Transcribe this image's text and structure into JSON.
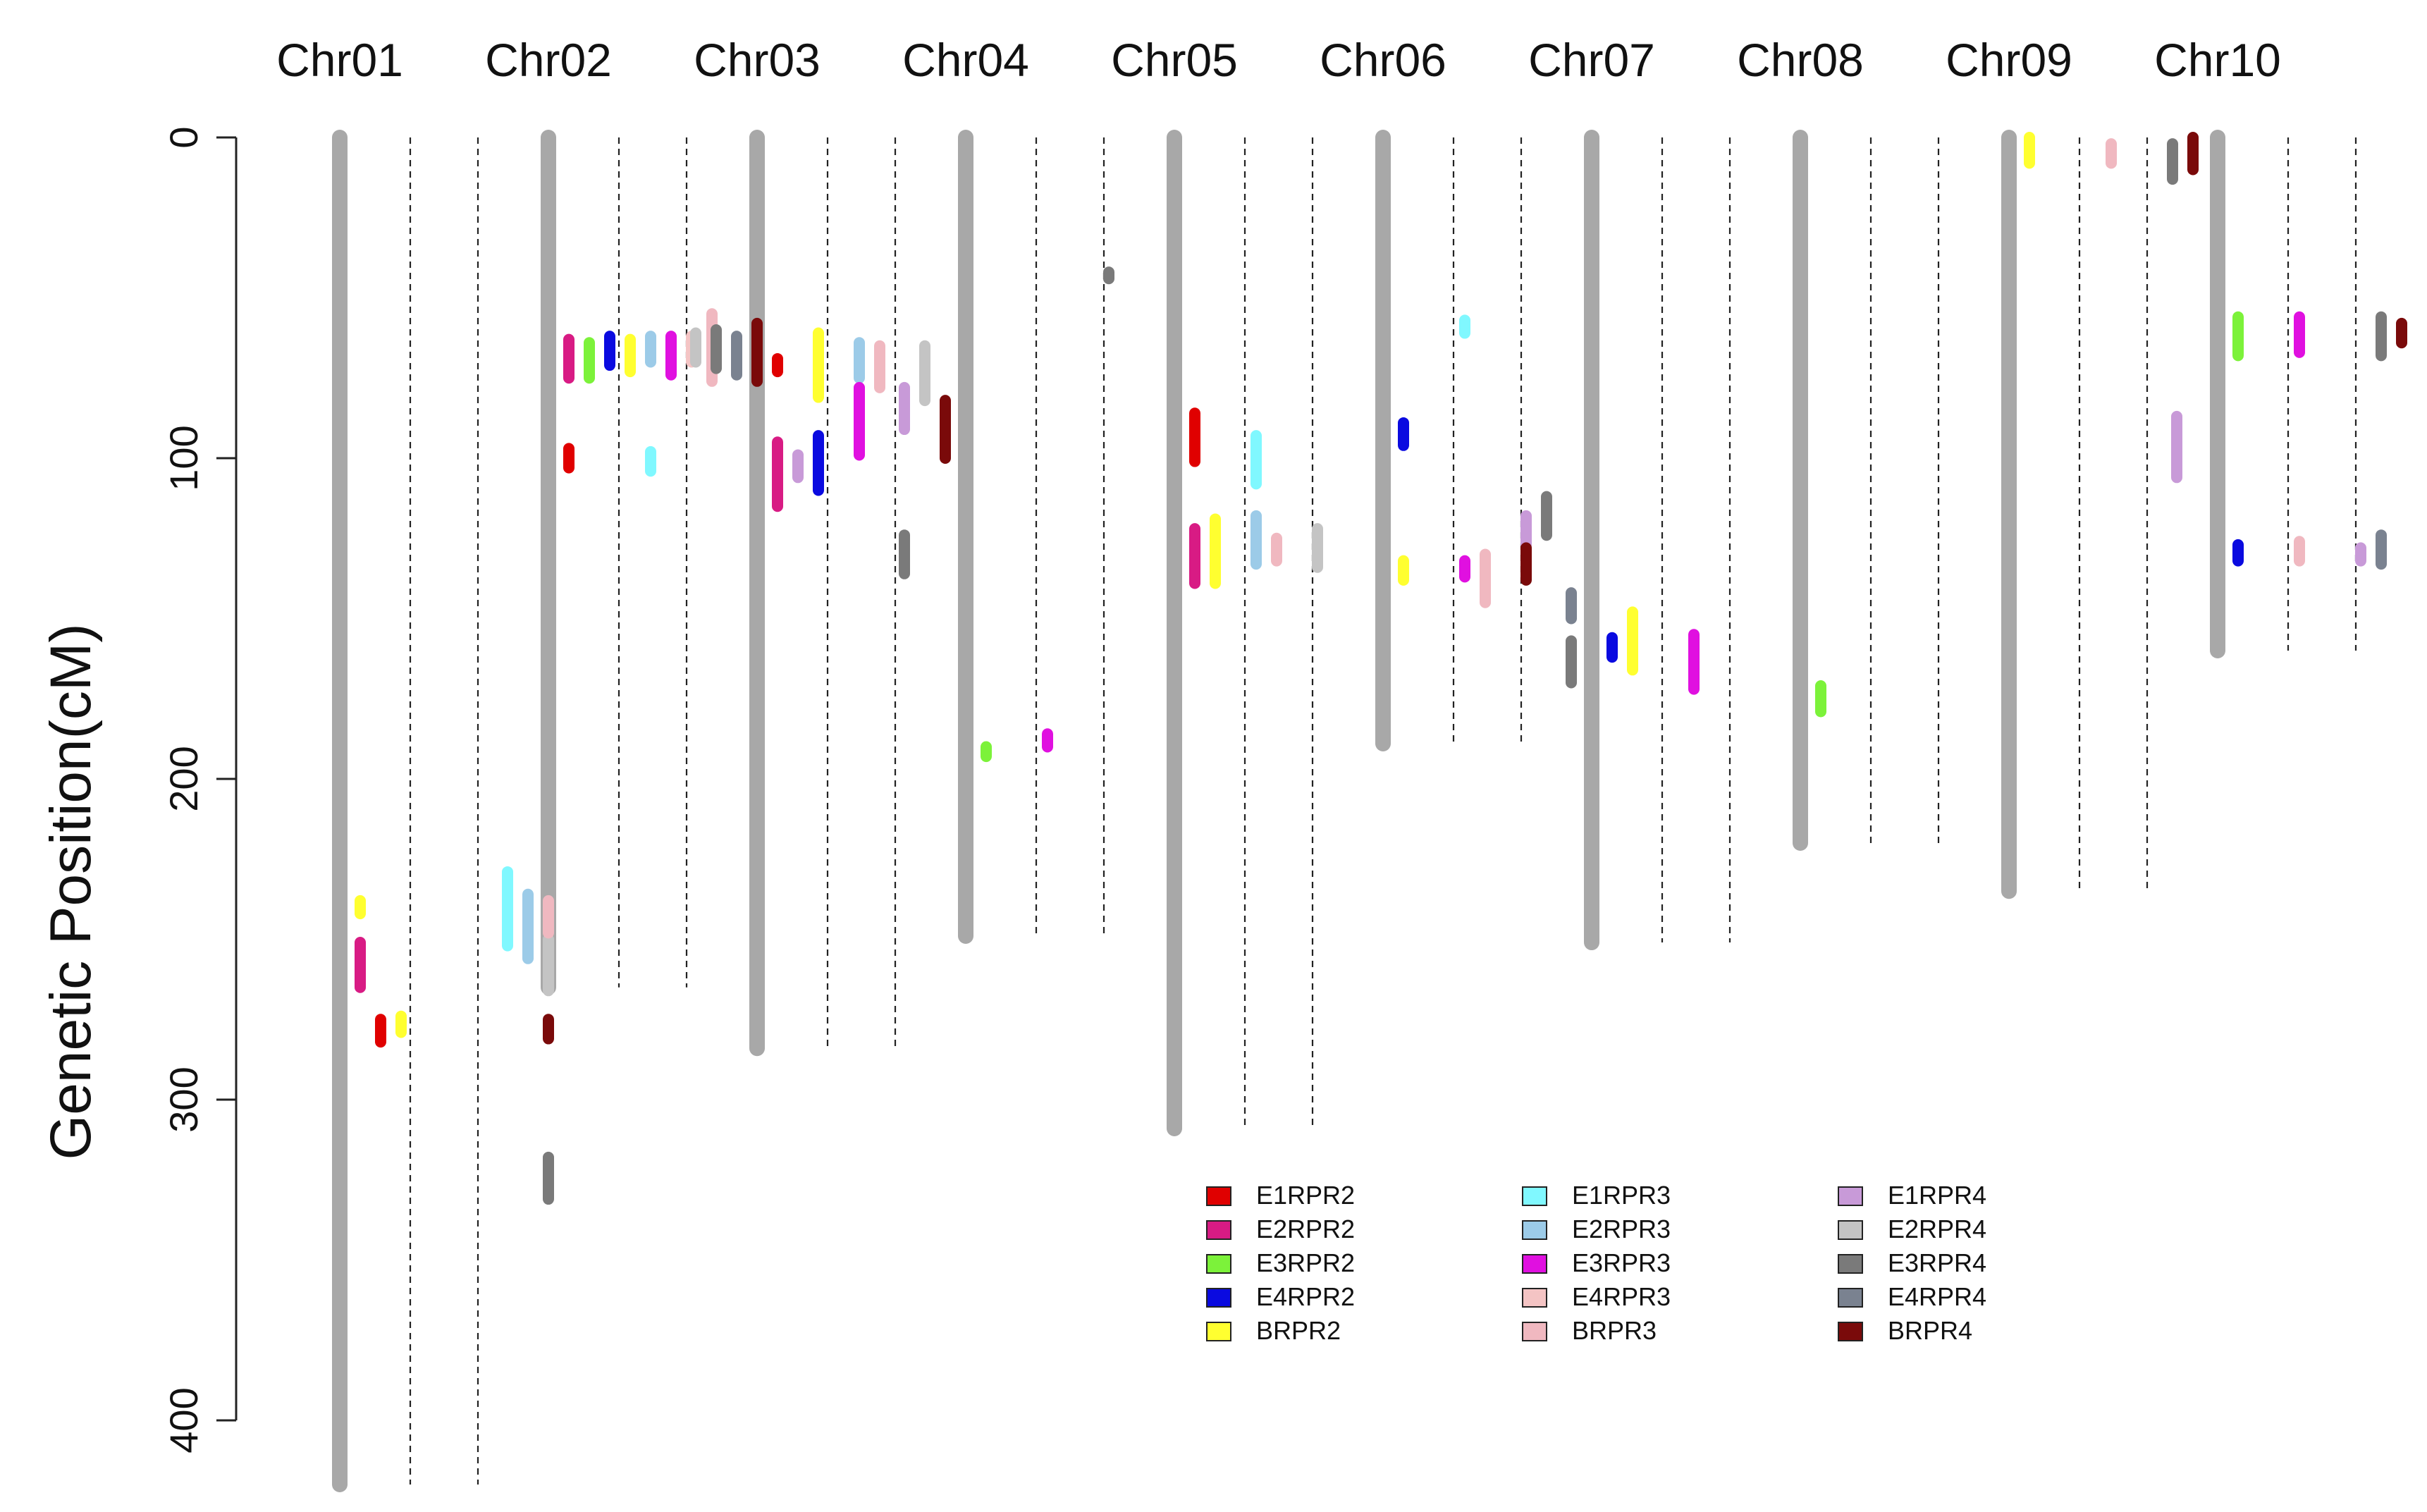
{
  "chart_data": {
    "type": "chromosome-map",
    "title": "",
    "ylabel": "Genetic Position(cM)",
    "yticks": [
      "0",
      "100",
      "200",
      "300",
      "400"
    ],
    "ylim": [
      0,
      420
    ],
    "chromosome_color": "#a8a8a8",
    "chromosomes": [
      {
        "name": "Chr01",
        "length": 420
      },
      {
        "name": "Chr02",
        "length": 265
      },
      {
        "name": "Chr03",
        "length": 284
      },
      {
        "name": "Chr04",
        "length": 249
      },
      {
        "name": "Chr05",
        "length": 309
      },
      {
        "name": "Chr06",
        "length": 189
      },
      {
        "name": "Chr07",
        "length": 251
      },
      {
        "name": "Chr08",
        "length": 220
      },
      {
        "name": "Chr09",
        "length": 235
      },
      {
        "name": "Chr10",
        "length": 160
      }
    ],
    "traits": [
      {
        "name": "E1RPR2",
        "color": "#e00000"
      },
      {
        "name": "E2RPR2",
        "color": "#d81b84"
      },
      {
        "name": "E3RPR2",
        "color": "#7cf23a"
      },
      {
        "name": "E4RPR2",
        "color": "#0a0ae0"
      },
      {
        "name": "BRPR2",
        "color": "#ffff30"
      },
      {
        "name": "E1RPR3",
        "color": "#80f8ff"
      },
      {
        "name": "E2RPR3",
        "color": "#9ccbe8"
      },
      {
        "name": "E3RPR3",
        "color": "#e010e0"
      },
      {
        "name": "E4RPR3",
        "color": "#f4c4c4"
      },
      {
        "name": "BRPR3",
        "color": "#f0b8c0"
      },
      {
        "name": "E1RPR4",
        "color": "#c89ad8"
      },
      {
        "name": "E2RPR4",
        "color": "#c4c4c4"
      },
      {
        "name": "E3RPR4",
        "color": "#7a7a7a"
      },
      {
        "name": "E4RPR4",
        "color": "#7a8290"
      },
      {
        "name": "BRPR4",
        "color": "#7a0a0a"
      }
    ],
    "qtls": [
      {
        "chr": "Chr01",
        "trait": "BRPR2",
        "track": 1,
        "start": 238,
        "end": 242
      },
      {
        "chr": "Chr01",
        "trait": "E2RPR2",
        "track": 1,
        "start": 251,
        "end": 265
      },
      {
        "chr": "Chr01",
        "trait": "E1RPR2",
        "track": 2,
        "start": 275,
        "end": 282
      },
      {
        "chr": "Chr01",
        "trait": "BRPR2",
        "track": 3,
        "start": 274,
        "end": 279
      },
      {
        "chr": "Chr02",
        "trait": "E1RPR3",
        "track": -2,
        "start": 229,
        "end": 252
      },
      {
        "chr": "Chr02",
        "trait": "E2RPR3",
        "track": -1,
        "start": 236,
        "end": 256
      },
      {
        "chr": "Chr02",
        "trait": "E2RPR4",
        "track": 0,
        "start": 250,
        "end": 266
      },
      {
        "chr": "Chr02",
        "trait": "BRPR3",
        "track": 0,
        "start": 238,
        "end": 248
      },
      {
        "chr": "Chr02",
        "trait": "BRPR4",
        "track": 0,
        "start": 275,
        "end": 281
      },
      {
        "chr": "Chr02",
        "trait": "E3RPR4",
        "track": 0,
        "start": 318,
        "end": 331
      },
      {
        "chr": "Chr02",
        "trait": "E2RPR2",
        "track": 1,
        "start": 63,
        "end": 75
      },
      {
        "chr": "Chr02",
        "trait": "E1RPR2",
        "track": 1,
        "start": 97,
        "end": 103
      },
      {
        "chr": "Chr02",
        "trait": "E3RPR2",
        "track": 2,
        "start": 64,
        "end": 75
      },
      {
        "chr": "Chr02",
        "trait": "E4RPR2",
        "track": 3,
        "start": 62,
        "end": 71
      },
      {
        "chr": "Chr02",
        "trait": "BRPR2",
        "track": 4,
        "start": 63,
        "end": 73
      },
      {
        "chr": "Chr02",
        "trait": "E2RPR3",
        "track": 5,
        "start": 62,
        "end": 70
      },
      {
        "chr": "Chr02",
        "trait": "E1RPR3",
        "track": 5,
        "start": 98,
        "end": 104
      },
      {
        "chr": "Chr02",
        "trait": "E3RPR3",
        "track": 6,
        "start": 62,
        "end": 74
      },
      {
        "chr": "Chr02",
        "trait": "E4RPR3",
        "track": 7,
        "start": 62,
        "end": 70
      },
      {
        "chr": "Chr02",
        "trait": "BRPR3",
        "track": 8,
        "start": 55,
        "end": 76
      },
      {
        "chr": "Chr03",
        "trait": "E2RPR4",
        "track": -3,
        "start": 61,
        "end": 70
      },
      {
        "chr": "Chr03",
        "trait": "E3RPR4",
        "track": -2,
        "start": 60,
        "end": 72
      },
      {
        "chr": "Chr03",
        "trait": "E4RPR4",
        "track": -1,
        "start": 62,
        "end": 74
      },
      {
        "chr": "Chr03",
        "trait": "BRPR4",
        "track": 0,
        "start": 58,
        "end": 76
      },
      {
        "chr": "Chr03",
        "trait": "E1RPR2",
        "track": 1,
        "start": 69,
        "end": 73
      },
      {
        "chr": "Chr03",
        "trait": "E2RPR2",
        "track": 1,
        "start": 95,
        "end": 115
      },
      {
        "chr": "Chr03",
        "trait": "E1RPR4",
        "track": 2,
        "start": 99,
        "end": 106
      },
      {
        "chr": "Chr03",
        "trait": "BRPR2",
        "track": 3,
        "start": 61,
        "end": 81
      },
      {
        "chr": "Chr03",
        "trait": "E4RPR2",
        "track": 3,
        "start": 93,
        "end": 110
      },
      {
        "chr": "Chr03",
        "trait": "E2RPR3",
        "track": 5,
        "start": 64,
        "end": 75
      },
      {
        "chr": "Chr03",
        "trait": "E3RPR3",
        "track": 5,
        "start": 78,
        "end": 99
      },
      {
        "chr": "Chr03",
        "trait": "BRPR3",
        "track": 6,
        "start": 65,
        "end": 78
      },
      {
        "chr": "Chr04",
        "trait": "E1RPR4",
        "track": -3,
        "start": 78,
        "end": 91
      },
      {
        "chr": "Chr04",
        "trait": "E3RPR4",
        "track": -3,
        "start": 124,
        "end": 136
      },
      {
        "chr": "Chr04",
        "trait": "E2RPR4",
        "track": -2,
        "start": 65,
        "end": 82
      },
      {
        "chr": "Chr04",
        "trait": "BRPR4",
        "track": -1,
        "start": 82,
        "end": 100
      },
      {
        "chr": "Chr04",
        "trait": "E3RPR2",
        "track": 1,
        "start": 190,
        "end": 193
      },
      {
        "chr": "Chr04",
        "trait": "E3RPR3",
        "track": 4,
        "start": 186,
        "end": 190
      },
      {
        "chr": "Chr04",
        "trait": "E3RPR4",
        "track": 7,
        "start": 42,
        "end": 44
      },
      {
        "chr": "Chr05",
        "trait": "E1RPR2",
        "track": 1,
        "start": 86,
        "end": 101
      },
      {
        "chr": "Chr05",
        "trait": "E2RPR2",
        "track": 1,
        "start": 122,
        "end": 139
      },
      {
        "chr": "Chr05",
        "trait": "BRPR2",
        "track": 2,
        "start": 119,
        "end": 139
      },
      {
        "chr": "Chr05",
        "trait": "E1RPR3",
        "track": 4,
        "start": 93,
        "end": 108
      },
      {
        "chr": "Chr05",
        "trait": "E2RPR3",
        "track": 4,
        "start": 118,
        "end": 133
      },
      {
        "chr": "Chr05",
        "trait": "BRPR3",
        "track": 5,
        "start": 125,
        "end": 132
      },
      {
        "chr": "Chr05",
        "trait": "E2RPR4",
        "track": 7,
        "start": 122,
        "end": 134
      },
      {
        "chr": "Chr06",
        "trait": "E4RPR2",
        "track": 1,
        "start": 89,
        "end": 96
      },
      {
        "chr": "Chr06",
        "trait": "BRPR2",
        "track": 1,
        "start": 132,
        "end": 138
      },
      {
        "chr": "Chr06",
        "trait": "E1RPR3",
        "track": 4,
        "start": 57,
        "end": 61
      },
      {
        "chr": "Chr06",
        "trait": "E3RPR3",
        "track": 4,
        "start": 132,
        "end": 137
      },
      {
        "chr": "Chr06",
        "trait": "BRPR3",
        "track": 5,
        "start": 130,
        "end": 145
      },
      {
        "chr": "Chr06",
        "trait": "E1RPR4",
        "track": 7,
        "start": 118,
        "end": 127
      },
      {
        "chr": "Chr06",
        "trait": "BRPR4",
        "track": 7,
        "start": 128,
        "end": 138
      },
      {
        "chr": "Chr06",
        "trait": "E3RPR4",
        "track": 8,
        "start": 112,
        "end": 124
      },
      {
        "chr": "Chr07",
        "trait": "E4RPR2",
        "track": 1,
        "start": 156,
        "end": 162
      },
      {
        "chr": "Chr07",
        "trait": "BRPR2",
        "track": 2,
        "start": 148,
        "end": 166
      },
      {
        "chr": "Chr07",
        "trait": "E3RPR3",
        "track": 5,
        "start": 155,
        "end": 172
      },
      {
        "chr": "Chr07",
        "trait": "E4RPR4",
        "track": -1,
        "start": 142,
        "end": 150
      },
      {
        "chr": "Chr07",
        "trait": "E3RPR4",
        "track": -1,
        "start": 157,
        "end": 170
      },
      {
        "chr": "Chr08",
        "trait": "E3RPR2",
        "track": 1,
        "start": 171,
        "end": 179
      },
      {
        "chr": "Chr09",
        "trait": "BRPR2",
        "track": 1,
        "start": 0,
        "end": 8
      },
      {
        "chr": "Chr09",
        "trait": "BRPR3",
        "track": 5,
        "start": 2,
        "end": 8
      },
      {
        "chr": "Chr09",
        "trait": "E3RPR4",
        "track": 8,
        "start": 2,
        "end": 13
      },
      {
        "chr": "Chr09",
        "trait": "BRPR4",
        "track": 9,
        "start": 0,
        "end": 10
      },
      {
        "chr": "Chr10",
        "trait": "E1RPR4",
        "track": -2,
        "start": 87,
        "end": 106
      },
      {
        "chr": "Chr10",
        "trait": "E3RPR2",
        "track": 1,
        "start": 56,
        "end": 68
      },
      {
        "chr": "Chr10",
        "trait": "E4RPR2",
        "track": 1,
        "start": 127,
        "end": 132
      },
      {
        "chr": "Chr10",
        "trait": "E3RPR3",
        "track": 4,
        "start": 56,
        "end": 67
      },
      {
        "chr": "Chr10",
        "trait": "BRPR3",
        "track": 4,
        "start": 126,
        "end": 132
      },
      {
        "chr": "Chr10",
        "trait": "E1RPR4",
        "track": 7,
        "start": 128,
        "end": 132
      },
      {
        "chr": "Chr10",
        "trait": "E3RPR4",
        "track": 8,
        "start": 56,
        "end": 68
      },
      {
        "chr": "Chr10",
        "trait": "E4RPR4",
        "track": 8,
        "start": 124,
        "end": 133
      },
      {
        "chr": "Chr10",
        "trait": "BRPR4",
        "track": 9,
        "start": 58,
        "end": 64
      }
    ]
  }
}
